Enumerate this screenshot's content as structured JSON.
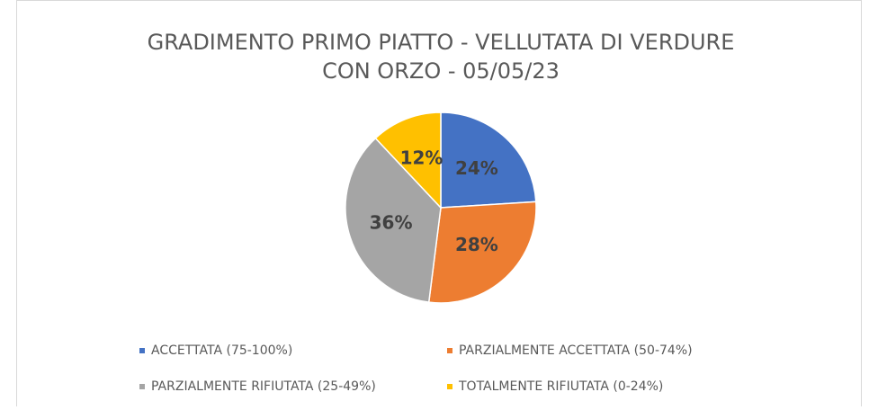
{
  "chart_data": {
    "type": "pie",
    "title": [
      "GRADIMENTO PRIMO PIATTO - VELLUTATA DI VERDURE",
      "CON ORZO - 05/05/23"
    ],
    "categories": [
      "ACCETTATA (75-100%)",
      "PARZIALMENTE ACCETTATA (50-74%)",
      "PARZIALMENTE RIFIUTATA (25-49%)",
      "TOTALMENTE RIFIUTATA (0-24%)"
    ],
    "values": [
      24,
      28,
      36,
      12
    ],
    "value_labels": [
      "24%",
      "28%",
      "36%",
      "12%"
    ],
    "colors": [
      "#4472c4",
      "#ed7d31",
      "#a5a5a5",
      "#ffc000"
    ],
    "legend": "bottom"
  }
}
